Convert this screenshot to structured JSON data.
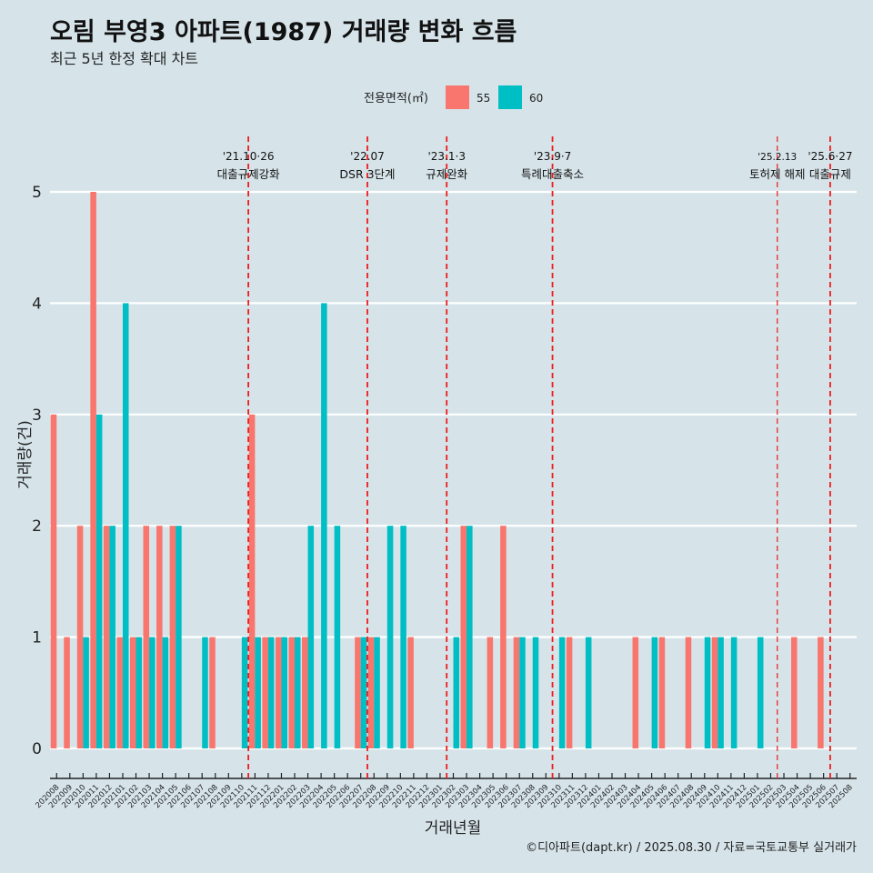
{
  "chart_data": {
    "type": "bar",
    "title": "오림 부영3 아파트(1987) 거래량 변화 흐름",
    "subtitle": "최근 5년 한정 확대 차트",
    "xlabel": "거래년월",
    "ylabel": "거래량(건)",
    "ylim": [
      0,
      5
    ],
    "yticks": [
      "0",
      "1",
      "2",
      "3",
      "4",
      "5"
    ],
    "grid": true,
    "legend": {
      "title": "전용면적(㎡)",
      "placement": "top",
      "entries": [
        {
          "label": "55",
          "color": "#f8766d"
        },
        {
          "label": "60",
          "color": "#00bfc4"
        }
      ]
    },
    "categories": [
      "202008",
      "202009",
      "202010",
      "202011",
      "202012",
      "202101",
      "202102",
      "202103",
      "202104",
      "202105",
      "202106",
      "202107",
      "202108",
      "202109",
      "202110",
      "202111",
      "202112",
      "202201",
      "202202",
      "202203",
      "202204",
      "202205",
      "202206",
      "202207",
      "202208",
      "202209",
      "202210",
      "202211",
      "202212",
      "202301",
      "202302",
      "202303",
      "202304",
      "202305",
      "202306",
      "202307",
      "202308",
      "202309",
      "202310",
      "202311",
      "202312",
      "202401",
      "202402",
      "202403",
      "202404",
      "202405",
      "202406",
      "202407",
      "202408",
      "202409",
      "202410",
      "202411",
      "202412",
      "202501",
      "202502",
      "202503",
      "202504",
      "202505",
      "202506",
      "202507",
      "202508"
    ],
    "series": [
      {
        "name": "55",
        "color": "#f8766d",
        "values": [
          3,
          1,
          2,
          5,
          2,
          1,
          1,
          2,
          2,
          2,
          0,
          0,
          1,
          0,
          0,
          3,
          1,
          1,
          1,
          1,
          0,
          0,
          0,
          1,
          1,
          0,
          0,
          1,
          0,
          0,
          0,
          2,
          0,
          1,
          2,
          1,
          0,
          0,
          0,
          1,
          0,
          0,
          0,
          0,
          1,
          0,
          1,
          0,
          1,
          0,
          1,
          0,
          0,
          0,
          0,
          0,
          1,
          0,
          1,
          0,
          0
        ]
      },
      {
        "name": "60",
        "color": "#00bfc4",
        "values": [
          0,
          0,
          1,
          3,
          2,
          4,
          1,
          1,
          1,
          2,
          0,
          1,
          0,
          0,
          1,
          1,
          1,
          1,
          1,
          2,
          4,
          2,
          0,
          1,
          1,
          2,
          2,
          0,
          0,
          0,
          1,
          2,
          0,
          0,
          0,
          1,
          1,
          0,
          1,
          0,
          1,
          0,
          0,
          0,
          0,
          1,
          0,
          0,
          0,
          1,
          1,
          1,
          0,
          1,
          0,
          0,
          0,
          0,
          0,
          0,
          0
        ]
      }
    ],
    "annotations": [
      {
        "date": "'21.10·26",
        "text": "대출규제강화",
        "x_index": 14.5
      },
      {
        "date": "'22.07",
        "text": "DSR 3단계",
        "x_index": 23.5
      },
      {
        "date": "'23.1·3",
        "text": "규제완화",
        "x_index": 29.5
      },
      {
        "date": "'23.9·7",
        "text": "특례대출축소",
        "x_index": 37.5
      },
      {
        "date": "'25.2.13",
        "text": "토허제 해제",
        "x_index": 54.5
      },
      {
        "date": "'25.6·27",
        "text": "대출규제",
        "x_index": 58.5
      }
    ],
    "caption": "©디아파트(dapt.kr) / 2025.08.30 / 자료=국토교통부 실거래가"
  }
}
